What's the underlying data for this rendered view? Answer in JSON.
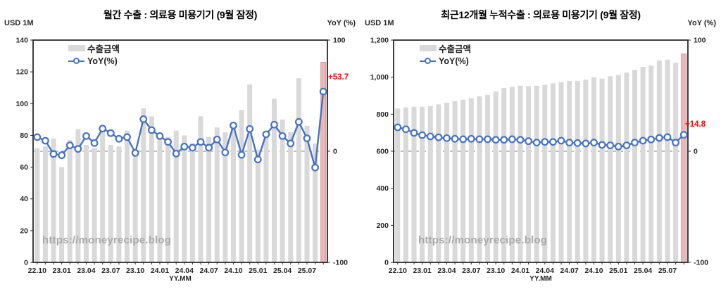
{
  "colors": {
    "bar": "#d9d9d9",
    "bar_highlight": "#e8b9b9",
    "bar_highlight_border": "#d99694",
    "line": "#4472c4",
    "marker_fill": "#ffffff",
    "annotation_red": "#ff0000",
    "frame": "#2b2b2b",
    "dashed_zero_line": "#7f7f7f",
    "tick_text": "#262626",
    "watermark": "#a9a9a9"
  },
  "charts": [
    {
      "chart_data": {
        "type": "bar+line",
        "title": "월간 수출 : 의료용 미용기기 (9월 잠정)",
        "left_axis_label": "USD 1M",
        "right_axis_label": "YoY (%)",
        "x_axis_label": "YY.MM",
        "categories": [
          "22.10",
          "22.11",
          "22.12",
          "23.01",
          "23.02",
          "23.03",
          "23.04",
          "23.05",
          "23.06",
          "23.07",
          "23.08",
          "23.09",
          "23.10",
          "23.11",
          "23.12",
          "24.01",
          "24.02",
          "24.03",
          "24.04",
          "24.05",
          "24.06",
          "24.07",
          "24.08",
          "24.09",
          "24.10",
          "24.11",
          "24.12",
          "25.01",
          "25.02",
          "25.03",
          "25.04",
          "25.05",
          "25.06",
          "25.07",
          "25.08",
          "25.09"
        ],
        "x_tick_labels": [
          "22.10",
          "23.01",
          "23.04",
          "23.07",
          "23.10",
          "24.01",
          "24.04",
          "24.07",
          "24.10",
          "25.01",
          "25.04",
          "25.07"
        ],
        "x_tick_every": 3,
        "series": [
          {
            "name": "수출금액",
            "type": "bar",
            "axis": "left",
            "values": [
              72,
              73,
              78,
              60,
              77,
              84,
              74,
              72,
              85,
              74,
              73,
              83,
              69,
              97,
              92,
              81,
              79,
              83,
              80,
              75,
              92,
              79,
              85,
              82,
              88,
              96,
              112,
              71,
              81,
              103,
              90,
              82,
              116,
              86,
              75,
              126
            ]
          },
          {
            "name": "YoY(%)",
            "type": "line",
            "axis": "right",
            "values": [
              12.7,
              9.5,
              -2.5,
              -3.6,
              5.3,
              2.1,
              13.7,
              7.4,
              20.4,
              16.3,
              11.2,
              12.7,
              -1.5,
              28.9,
              19.0,
              13.7,
              8.4,
              -2.1,
              4.2,
              3.2,
              8.4,
              3.2,
              10.6,
              -1.1,
              23.2,
              -3.2,
              20.1,
              -7.4,
              15.2,
              23.9,
              13.7,
              7.0,
              26.4,
              11.6,
              -14.7,
              53.7
            ]
          }
        ],
        "left_axis": {
          "min": 0,
          "max": 140,
          "tick_step": 20
        },
        "right_axis": {
          "min": -100,
          "max": 100,
          "ticks": [
            100,
            0,
            -100
          ]
        },
        "highlight_last_bar": true,
        "zero_dashed_line": true,
        "grid": false,
        "legend_position": "top-left",
        "annotation": {
          "text": "+53.7",
          "color": "#ff0000"
        },
        "watermark": "https://moneyrecipe.blog"
      }
    },
    {
      "chart_data": {
        "type": "bar+line",
        "title": "최근12개월 누적수출 : 의료용 미용기기 (9월 잠정)",
        "left_axis_label": "USD 1M",
        "right_axis_label": "YoY (%)",
        "x_axis_label": "YY.MM",
        "categories": [
          "22.10",
          "22.11",
          "22.12",
          "23.01",
          "23.02",
          "23.03",
          "23.04",
          "23.05",
          "23.06",
          "23.07",
          "23.08",
          "23.09",
          "23.10",
          "23.11",
          "23.12",
          "24.01",
          "24.02",
          "24.03",
          "24.04",
          "24.05",
          "24.06",
          "24.07",
          "24.08",
          "24.09",
          "24.10",
          "24.11",
          "24.12",
          "25.01",
          "25.02",
          "25.03",
          "25.04",
          "25.05",
          "25.06",
          "25.07",
          "25.08",
          "25.09"
        ],
        "x_tick_labels": [
          "22.10",
          "23.01",
          "23.04",
          "23.07",
          "23.10",
          "24.01",
          "24.04",
          "24.07",
          "24.10",
          "25.01",
          "25.04",
          "25.07"
        ],
        "x_tick_every": 3,
        "series": [
          {
            "name": "수출금액",
            "type": "bar",
            "axis": "left",
            "values": [
              831,
              837,
              840,
              840,
              844,
              853,
              862,
              870,
              878,
              887,
              897,
              904,
              923,
              942,
              948,
              954,
              952,
              954,
              958,
              967,
              973,
              980,
              980,
              986,
              999,
              992,
              1005,
              1011,
              1024,
              1039,
              1056,
              1062,
              1090,
              1094,
              1077,
              1125
            ]
          },
          {
            "name": "YoY(%)",
            "type": "line",
            "axis": "right",
            "values": [
              21.5,
              19.8,
              16.5,
              14.5,
              13.3,
              12.5,
              11.8,
              11.2,
              10.8,
              11.2,
              10.8,
              10.8,
              10.3,
              10.3,
              10.8,
              10.3,
              9.1,
              7.8,
              8.4,
              8.4,
              9.5,
              7.8,
              7.4,
              7.0,
              7.8,
              5.7,
              5.3,
              4.2,
              5.3,
              7.8,
              9.5,
              10.6,
              12.0,
              12.7,
              7.8,
              14.8
            ]
          }
        ],
        "left_axis": {
          "min": 0,
          "max": 1200,
          "tick_step": 200
        },
        "right_axis": {
          "min": -100,
          "max": 100,
          "ticks": [
            100,
            0,
            -100
          ]
        },
        "highlight_last_bar": true,
        "zero_dashed_line": true,
        "grid": false,
        "legend_position": "top-left",
        "annotation": {
          "text": "+14.8",
          "color": "#ff0000"
        },
        "watermark": "https://moneyrecipe.blog"
      }
    }
  ]
}
